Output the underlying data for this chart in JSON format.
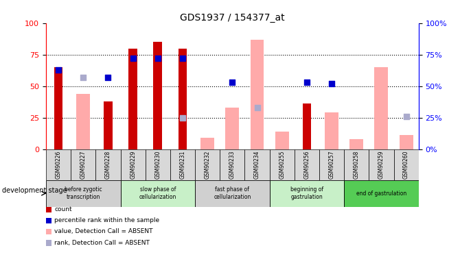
{
  "title": "GDS1937 / 154377_at",
  "samples": [
    "GSM90226",
    "GSM90227",
    "GSM90228",
    "GSM90229",
    "GSM90230",
    "GSM90231",
    "GSM90232",
    "GSM90233",
    "GSM90234",
    "GSM90255",
    "GSM90256",
    "GSM90257",
    "GSM90258",
    "GSM90259",
    "GSM90260"
  ],
  "red_bars": [
    65,
    0,
    38,
    80,
    85,
    80,
    0,
    0,
    0,
    0,
    36,
    0,
    0,
    0,
    0
  ],
  "blue_squares": [
    63,
    0,
    57,
    72,
    72,
    72,
    0,
    53,
    0,
    0,
    53,
    52,
    0,
    0,
    0
  ],
  "pink_bars": [
    0,
    44,
    0,
    0,
    0,
    0,
    9,
    33,
    87,
    14,
    0,
    29,
    8,
    65,
    11
  ],
  "lavender_squares": [
    0,
    57,
    0,
    0,
    0,
    25,
    0,
    0,
    33,
    0,
    0,
    0,
    0,
    0,
    26
  ],
  "stages": [
    {
      "label": "before zygotic\ntranscription",
      "start": 0,
      "end": 3,
      "color": "#d0d0d0"
    },
    {
      "label": "slow phase of\ncellularization",
      "start": 3,
      "end": 6,
      "color": "#c8f0c8"
    },
    {
      "label": "fast phase of\ncellularization",
      "start": 6,
      "end": 9,
      "color": "#d0d0d0"
    },
    {
      "label": "beginning of\ngastrulation",
      "start": 9,
      "end": 12,
      "color": "#c8f0c8"
    },
    {
      "label": "end of gastrulation",
      "start": 12,
      "end": 15,
      "color": "#55cc55"
    }
  ],
  "red_color": "#cc0000",
  "blue_color": "#0000cc",
  "pink_color": "#ffaaaa",
  "lavender_color": "#aaaacc",
  "ylim": [
    0,
    100
  ],
  "grid_lines": [
    25,
    50,
    75
  ],
  "sq_size": 40
}
